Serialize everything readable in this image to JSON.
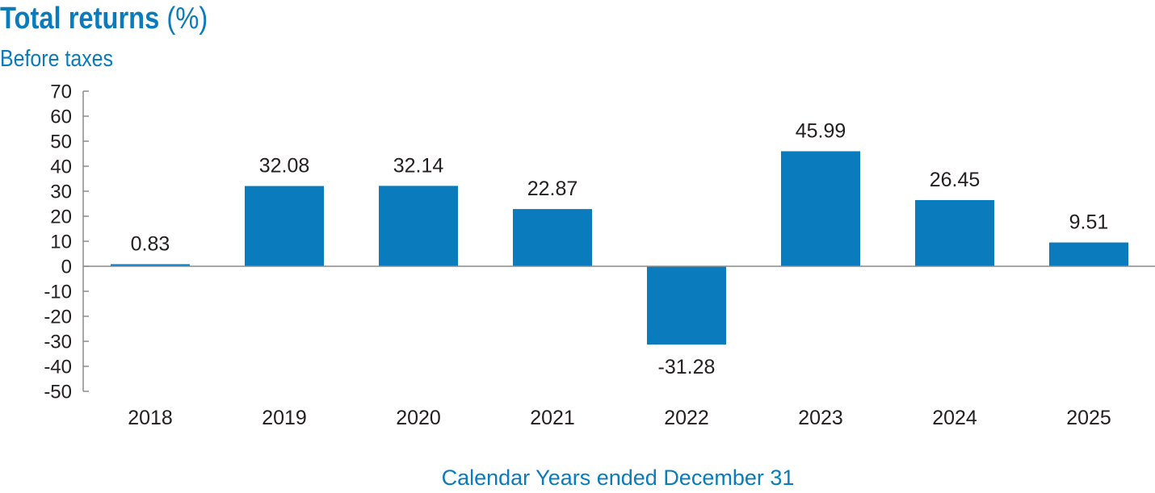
{
  "chart_data": {
    "type": "bar",
    "title": "Total returns",
    "title_suffix": "(%)",
    "subtitle": "Before taxes",
    "xlabel": "Calendar Years ended December 31",
    "ylabel": "",
    "categories": [
      "2018",
      "2019",
      "2020",
      "2021",
      "2022",
      "2023",
      "2024",
      "2025"
    ],
    "values": [
      0.83,
      32.08,
      32.14,
      22.87,
      -31.28,
      45.99,
      26.45,
      9.51
    ],
    "value_labels": [
      "0.83",
      "32.08",
      "32.14",
      "22.87",
      "-31.28",
      "45.99",
      "26.45",
      "9.51"
    ],
    "ylim": [
      -50,
      70
    ],
    "yticks": [
      70,
      60,
      50,
      40,
      30,
      20,
      10,
      0,
      -10,
      -20,
      -30,
      -40,
      -50
    ],
    "ytick_labels": [
      "70",
      "60",
      "50",
      "40",
      "30",
      "20",
      "10",
      "0",
      "-10",
      "-20",
      "-30",
      "-40",
      "-50"
    ],
    "grid": false,
    "legend": "none",
    "colors": {
      "bar": "#0a7bbd",
      "title": "#0a7bbd",
      "text": "#231f20",
      "axis": "#8c8c8c"
    }
  }
}
